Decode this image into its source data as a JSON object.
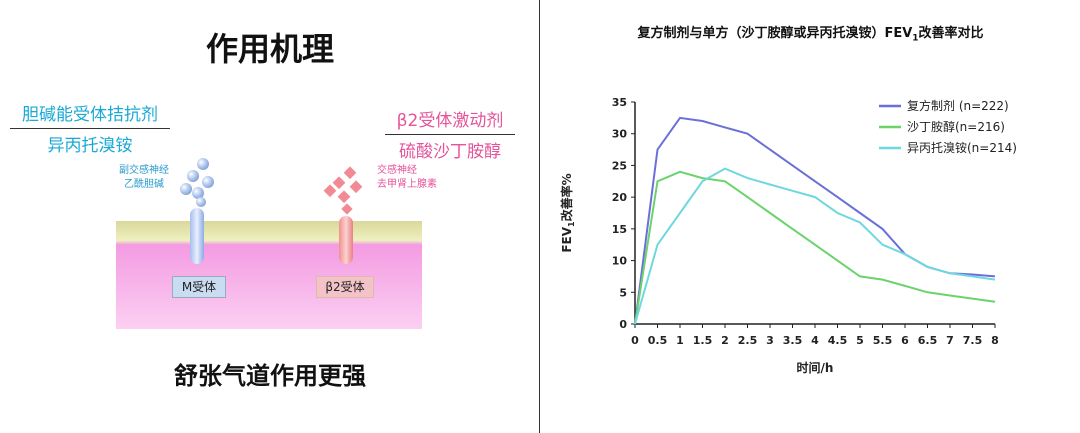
{
  "left": {
    "title": "作用机理",
    "anticholinergic": {
      "line1": "胆碱能受体拮抗剂",
      "line2": "异丙托溴铵"
    },
    "beta2_agonist": {
      "line1": "β2受体激动剂",
      "line2": "硫酸沙丁胺醇"
    },
    "parasympathetic": {
      "line1": "副交感神经",
      "line2": "乙酰胆碱"
    },
    "sympathetic": {
      "line1": "交感神经",
      "line2": "去甲肾上腺素"
    },
    "m_receptor": "M受体",
    "b2_receptor": "β2受体",
    "footer": "舒张气道作用更强",
    "colors": {
      "cyan": "#1aa9d6",
      "pink": "#e5539b",
      "membrane_pink": "#f7a6e6",
      "membrane_yellow": "#ecefb8"
    }
  },
  "chart_data": {
    "type": "line",
    "title_prefix": "复方制剂与单方（沙丁胺醇或异丙托溴铵）FEV",
    "title_sub": "1",
    "title_suffix": "改善率对比",
    "ylabel_prefix": "FEV",
    "ylabel_sub": "1",
    "ylabel_suffix": "改善率%",
    "xlabel": "时间/h",
    "xlim": [
      0,
      8
    ],
    "ylim": [
      0,
      35
    ],
    "xticks": [
      "0",
      "0.5",
      "1",
      "1.5",
      "2",
      "2.5",
      "3",
      "3.5",
      "4",
      "4.5",
      "5",
      "5.5",
      "6",
      "6.5",
      "7",
      "7.5",
      "8"
    ],
    "yticks": [
      "0",
      "5",
      "10",
      "15",
      "20",
      "25",
      "30",
      "35"
    ],
    "legend_position": "top-right",
    "grid": false,
    "series": [
      {
        "name": "复方制剂  (n=222)",
        "color": "#6b6fd9",
        "x": [
          0,
          0.5,
          1,
          1.5,
          2,
          2.5,
          3,
          3.5,
          4,
          4.5,
          5,
          5.5,
          6,
          6.5,
          7,
          7.5,
          8
        ],
        "y": [
          0,
          27.5,
          32.5,
          32,
          31,
          30,
          27.5,
          25,
          22.5,
          20,
          17.5,
          15,
          11,
          9,
          8,
          7.8,
          7.5
        ]
      },
      {
        "name": "沙丁胺醇(n=216)",
        "color": "#6cd36c",
        "x": [
          0,
          0.5,
          1,
          1.5,
          2,
          2.5,
          3,
          3.5,
          4,
          4.5,
          5,
          5.5,
          6,
          6.5,
          7,
          7.5,
          8
        ],
        "y": [
          0,
          22.5,
          24,
          23,
          22.5,
          20,
          17.5,
          15,
          12.5,
          10,
          7.5,
          7,
          6,
          5,
          4.5,
          4,
          3.5
        ]
      },
      {
        "name": "异丙托溴铵(n=214)",
        "color": "#6fd8df",
        "x": [
          0,
          0.5,
          1,
          1.5,
          2,
          2.5,
          3,
          3.5,
          4,
          4.5,
          5,
          5.5,
          6,
          6.5,
          7,
          7.5,
          8
        ],
        "y": [
          0,
          12.5,
          17.5,
          22.5,
          24.5,
          23,
          22,
          21,
          20,
          17.5,
          16,
          12.5,
          11,
          9,
          8,
          7.5,
          7
        ]
      }
    ]
  }
}
